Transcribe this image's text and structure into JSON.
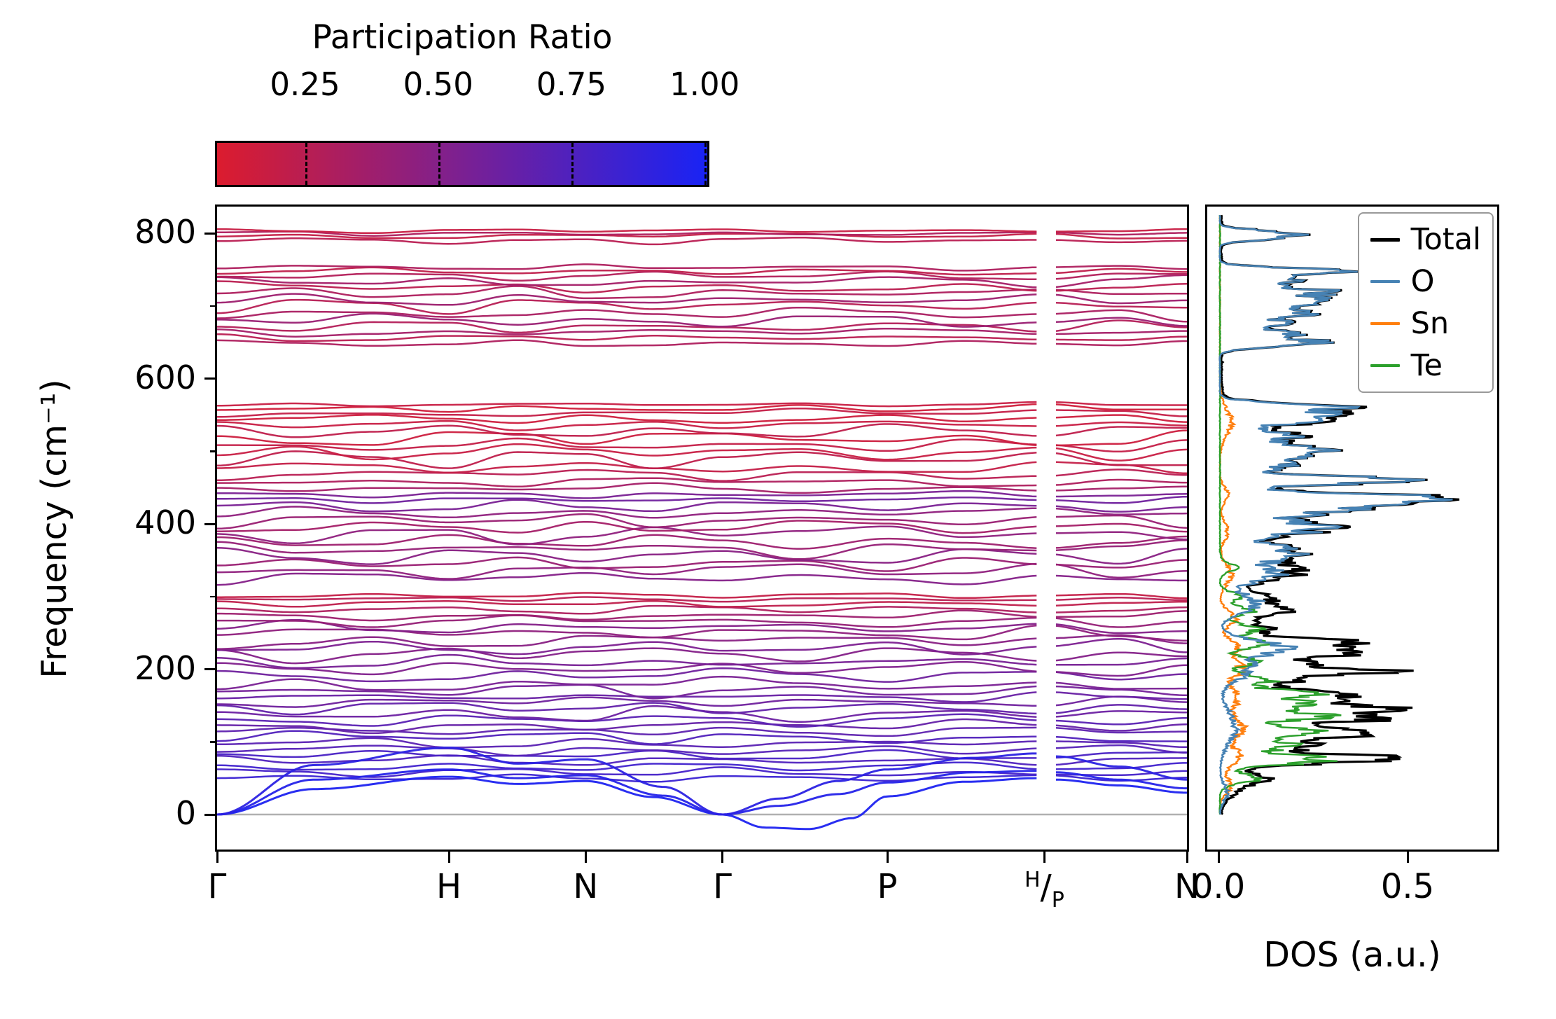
{
  "chart_data": {
    "type": "line",
    "description": "Phonon band structure colored by participation ratio (left) with atom-projected phonon DOS (right)",
    "colorbar": {
      "title": "Participation Ratio",
      "ticks": [
        "0.25",
        "0.50",
        "0.75",
        "1.00"
      ],
      "tick_values": [
        0.25,
        0.5,
        0.75,
        1.0
      ],
      "vmin": 0.085,
      "vmax": 1.005,
      "color_low": "#dc1c2e",
      "color_high": "#1923f5"
    },
    "band_panel": {
      "ylabel": "Frequency (cm⁻¹)",
      "yticks": [
        0,
        200,
        400,
        600,
        800
      ],
      "yminor": [
        100,
        300,
        500,
        700
      ],
      "ylim": [
        -47,
        836
      ],
      "zero_line_color": "#b0b0b0",
      "xticks": [
        {
          "label": "Γ",
          "pos": 0
        },
        {
          "label": "H",
          "pos": 0.239
        },
        {
          "label": "N",
          "pos": 0.38
        },
        {
          "label": "Γ",
          "pos": 0.521
        },
        {
          "label": "P",
          "pos": 0.691
        },
        {
          "label": "H/P",
          "sup": "H",
          "sub": "P",
          "pos": 0.853
        },
        {
          "label": "N",
          "pos": 1.0
        }
      ],
      "gap": [
        0.845,
        0.865
      ],
      "acoustic_bands": [
        {
          "p": 0.98,
          "pts": [
            [
              0,
              0
            ],
            [
              0.1,
              35
            ],
            [
              0.239,
              52
            ],
            [
              0.31,
              42
            ],
            [
              0.38,
              46
            ],
            [
              0.45,
              24
            ],
            [
              0.521,
              0
            ],
            [
              0.565,
              -18
            ],
            [
              0.61,
              -20
            ],
            [
              0.655,
              -5
            ],
            [
              0.691,
              25
            ],
            [
              0.77,
              45
            ],
            [
              0.845,
              50
            ],
            [
              0.865,
              48
            ],
            [
              0.93,
              40
            ],
            [
              1,
              30
            ]
          ]
        },
        {
          "p": 0.95,
          "pts": [
            [
              0,
              0
            ],
            [
              0.1,
              48
            ],
            [
              0.239,
              62
            ],
            [
              0.31,
              50
            ],
            [
              0.38,
              54
            ],
            [
              0.46,
              26
            ],
            [
              0.521,
              0
            ],
            [
              0.58,
              12
            ],
            [
              0.64,
              28
            ],
            [
              0.691,
              44
            ],
            [
              0.78,
              58
            ],
            [
              0.845,
              60
            ],
            [
              0.865,
              58
            ],
            [
              0.93,
              48
            ],
            [
              1,
              36
            ]
          ]
        },
        {
          "p": 0.92,
          "pts": [
            [
              0,
              0
            ],
            [
              0.1,
              68
            ],
            [
              0.239,
              92
            ],
            [
              0.31,
              70
            ],
            [
              0.38,
              76
            ],
            [
              0.46,
              38
            ],
            [
              0.521,
              0
            ],
            [
              0.58,
              22
            ],
            [
              0.64,
              46
            ],
            [
              0.691,
              62
            ],
            [
              0.78,
              78
            ],
            [
              0.845,
              84
            ],
            [
              0.865,
              80
            ],
            [
              0.93,
              66
            ],
            [
              1,
              48
            ]
          ]
        }
      ],
      "optical_bands": [
        [
          50,
          6,
          0.85
        ],
        [
          58,
          8,
          0.8
        ],
        [
          66,
          7,
          0.82
        ],
        [
          74,
          9,
          0.75
        ],
        [
          82,
          8,
          0.78
        ],
        [
          90,
          10,
          0.72
        ],
        [
          98,
          9,
          0.7
        ],
        [
          106,
          10,
          0.74
        ],
        [
          114,
          9,
          0.68
        ],
        [
          122,
          11,
          0.65
        ],
        [
          130,
          10,
          0.7
        ],
        [
          138,
          12,
          0.62
        ],
        [
          146,
          10,
          0.66
        ],
        [
          154,
          12,
          0.6
        ],
        [
          162,
          11,
          0.63
        ],
        [
          170,
          12,
          0.58
        ],
        [
          180,
          13,
          0.55
        ],
        [
          190,
          12,
          0.6
        ],
        [
          200,
          13,
          0.52
        ],
        [
          210,
          12,
          0.56
        ],
        [
          220,
          13,
          0.5
        ],
        [
          230,
          12,
          0.54
        ],
        [
          240,
          13,
          0.48
        ],
        [
          250,
          12,
          0.45
        ],
        [
          258,
          10,
          0.5
        ],
        [
          266,
          9,
          0.42
        ],
        [
          274,
          8,
          0.38
        ],
        [
          282,
          7,
          0.3
        ],
        [
          290,
          6,
          0.22
        ],
        [
          296,
          5,
          0.25
        ],
        [
          302,
          5,
          0.2
        ],
        [
          325,
          10,
          0.5
        ],
        [
          335,
          12,
          0.45
        ],
        [
          345,
          12,
          0.4
        ],
        [
          355,
          13,
          0.48
        ],
        [
          365,
          14,
          0.42
        ],
        [
          375,
          13,
          0.38
        ],
        [
          385,
          14,
          0.45
        ],
        [
          395,
          12,
          0.35
        ],
        [
          405,
          12,
          0.4
        ],
        [
          415,
          10,
          0.45
        ],
        [
          425,
          9,
          0.55
        ],
        [
          433,
          6,
          0.6
        ],
        [
          440,
          7,
          0.55
        ],
        [
          448,
          9,
          0.35
        ],
        [
          458,
          10,
          0.3
        ],
        [
          468,
          10,
          0.25
        ],
        [
          478,
          12,
          0.2
        ],
        [
          488,
          14,
          0.22
        ],
        [
          498,
          14,
          0.18
        ],
        [
          508,
          13,
          0.2
        ],
        [
          518,
          14,
          0.16
        ],
        [
          528,
          12,
          0.22
        ],
        [
          536,
          10,
          0.18
        ],
        [
          544,
          9,
          0.15
        ],
        [
          552,
          8,
          0.2
        ],
        [
          558,
          7,
          0.14
        ],
        [
          564,
          5,
          0.18
        ],
        [
          648,
          6,
          0.3
        ],
        [
          656,
          8,
          0.25
        ],
        [
          664,
          9,
          0.35
        ],
        [
          672,
          10,
          0.28
        ],
        [
          680,
          11,
          0.4
        ],
        [
          690,
          12,
          0.32
        ],
        [
          700,
          12,
          0.26
        ],
        [
          710,
          11,
          0.38
        ],
        [
          718,
          10,
          0.3
        ],
        [
          726,
          10,
          0.24
        ],
        [
          734,
          9,
          0.35
        ],
        [
          742,
          8,
          0.28
        ],
        [
          748,
          6,
          0.22
        ],
        [
          753,
          5,
          0.3
        ],
        [
          790,
          6,
          0.25
        ],
        [
          796,
          5,
          0.2
        ],
        [
          800,
          4,
          0.3
        ],
        [
          803,
          3,
          0.18
        ]
      ]
    },
    "dos_panel": {
      "xlabel": "DOS (a.u.)",
      "xticks": [
        {
          "label": "0.0",
          "value": 0
        },
        {
          "label": "0.5",
          "value": 0.5
        }
      ],
      "xlim": [
        0,
        0.74
      ],
      "legend": [
        {
          "label": "Total",
          "color": "#000000"
        },
        {
          "label": "O",
          "color": "#4682b4"
        },
        {
          "label": "Sn",
          "color": "#ff7f0e"
        },
        {
          "label": "Te",
          "color": "#2ca02c"
        }
      ],
      "peaks": {
        "O": [
          [
            30,
            0.02,
            15
          ],
          [
            120,
            0.04,
            30
          ],
          [
            200,
            0.08,
            20
          ],
          [
            230,
            0.16,
            14
          ],
          [
            290,
            0.1,
            18
          ],
          [
            330,
            0.14,
            14
          ],
          [
            360,
            0.2,
            16
          ],
          [
            395,
            0.26,
            14
          ],
          [
            420,
            0.3,
            10
          ],
          [
            435,
            0.62,
            9
          ],
          [
            460,
            0.48,
            8
          ],
          [
            482,
            0.18,
            12
          ],
          [
            500,
            0.24,
            10
          ],
          [
            520,
            0.18,
            12
          ],
          [
            545,
            0.26,
            10
          ],
          [
            560,
            0.28,
            8
          ],
          [
            650,
            0.24,
            8
          ],
          [
            662,
            0.18,
            6
          ],
          [
            676,
            0.16,
            8
          ],
          [
            690,
            0.2,
            8
          ],
          [
            706,
            0.26,
            9
          ],
          [
            720,
            0.24,
            8
          ],
          [
            735,
            0.18,
            8
          ],
          [
            748,
            0.28,
            6
          ],
          [
            795,
            0.18,
            6
          ],
          [
            802,
            0.12,
            5
          ]
        ],
        "Sn": [
          [
            40,
            0.03,
            14
          ],
          [
            80,
            0.05,
            18
          ],
          [
            120,
            0.06,
            18
          ],
          [
            160,
            0.05,
            18
          ],
          [
            200,
            0.06,
            14
          ],
          [
            230,
            0.05,
            14
          ],
          [
            270,
            0.04,
            14
          ],
          [
            330,
            0.03,
            18
          ],
          [
            390,
            0.02,
            18
          ],
          [
            440,
            0.02,
            15
          ],
          [
            540,
            0.03,
            25
          ]
        ],
        "Te": [
          [
            50,
            0.1,
            10
          ],
          [
            75,
            0.28,
            9
          ],
          [
            95,
            0.18,
            10
          ],
          [
            115,
            0.24,
            9
          ],
          [
            135,
            0.26,
            9
          ],
          [
            150,
            0.2,
            8
          ],
          [
            165,
            0.24,
            9
          ],
          [
            185,
            0.14,
            9
          ],
          [
            210,
            0.1,
            9
          ],
          [
            235,
            0.12,
            9
          ],
          [
            255,
            0.1,
            9
          ],
          [
            280,
            0.08,
            9
          ],
          [
            300,
            0.05,
            9
          ],
          [
            340,
            0.04,
            9
          ]
        ],
        "Total_extra": [
          [
            78,
            0.18,
            5
          ],
          [
            108,
            0.1,
            4
          ],
          [
            130,
            0.12,
            4
          ],
          [
            145,
            0.25,
            5
          ],
          [
            160,
            0.1,
            4
          ],
          [
            197,
            0.28,
            5
          ],
          [
            222,
            0.15,
            5
          ],
          [
            240,
            0.1,
            4
          ]
        ]
      }
    }
  }
}
